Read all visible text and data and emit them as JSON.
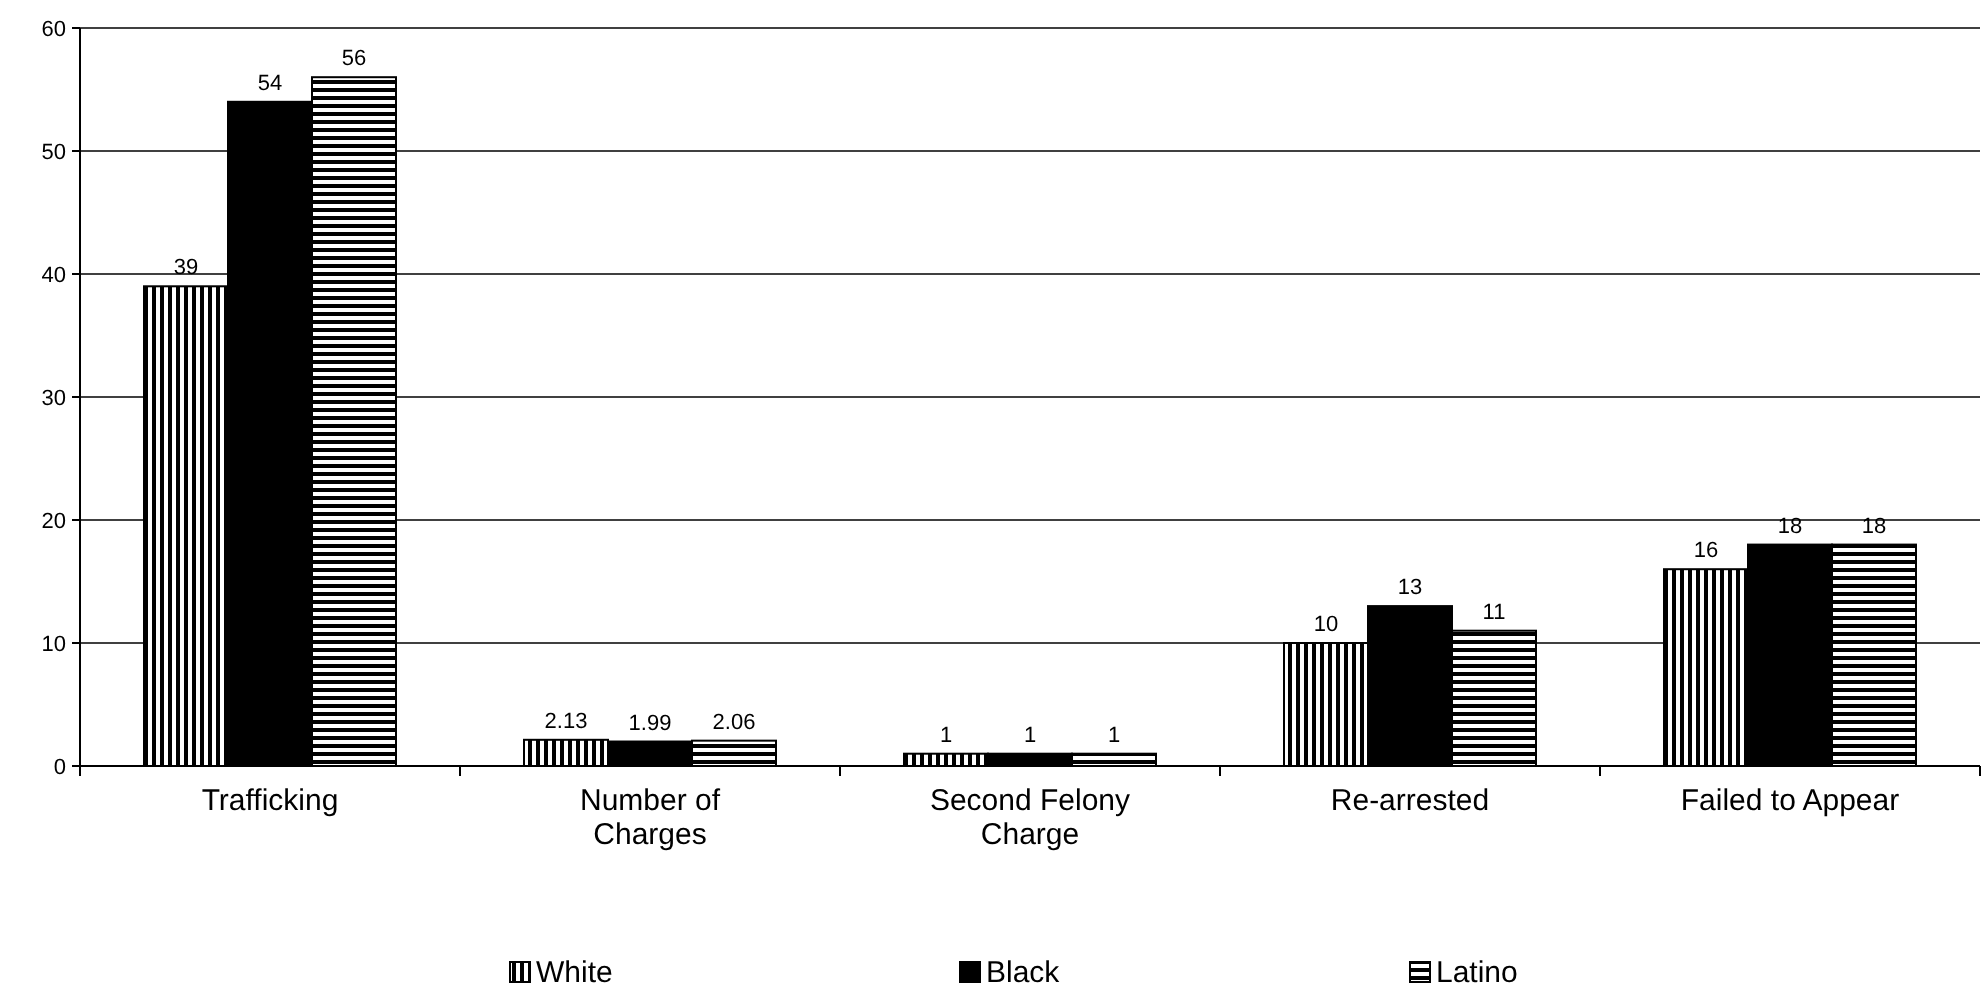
{
  "chart_data": {
    "type": "bar",
    "categories": [
      "Trafficking",
      "Number of Charges",
      "Second Felony Charge",
      "Re-arrested",
      "Failed to Appear"
    ],
    "series": [
      {
        "name": "White",
        "color": "#000000",
        "values": [
          39,
          2.13,
          1,
          10,
          16
        ]
      },
      {
        "name": "Black",
        "color": "#000000",
        "values": [
          54,
          1.99,
          1,
          13,
          18
        ]
      },
      {
        "name": "Latino",
        "color": "#000000",
        "values": [
          56,
          2.06,
          1,
          11,
          18
        ]
      }
    ],
    "ylim": [
      0,
      60
    ],
    "yticks": [
      0,
      10,
      20,
      30,
      40,
      50,
      60
    ],
    "grid": "y",
    "legend": "bottom",
    "data_labels": true
  }
}
